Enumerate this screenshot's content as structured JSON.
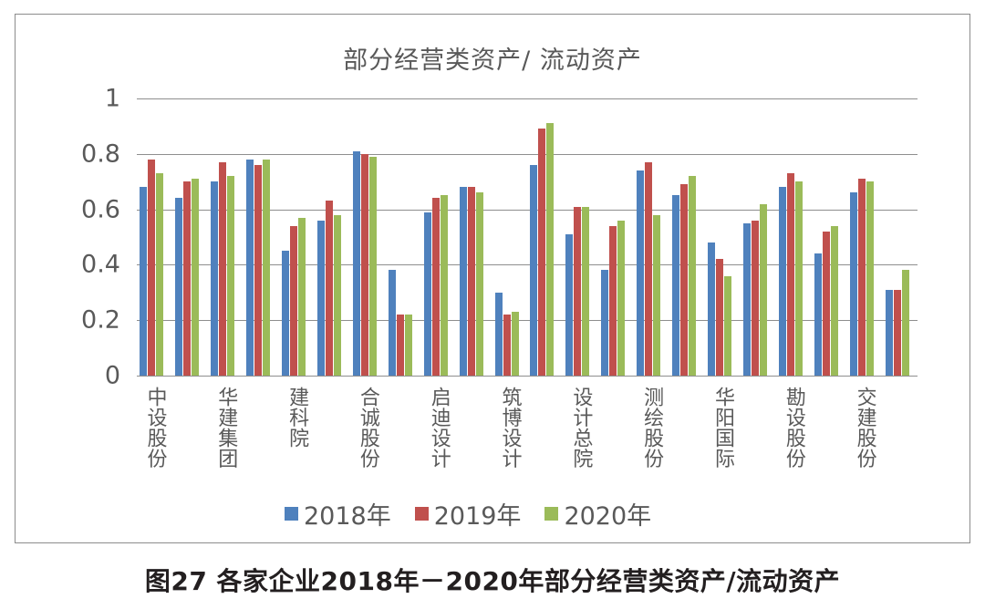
{
  "caption": "图27   各家企业2018年－2020年部分经营类资产/流动资产",
  "chart_data": {
    "type": "bar",
    "title": "部分经营类资产/ 流动资产",
    "xlabel": "",
    "ylabel": "",
    "ylim": [
      0,
      1
    ],
    "yticks": [
      "0",
      "0.2",
      "0.4",
      "0.6",
      "0.8",
      "1"
    ],
    "grid": true,
    "legend_position": "bottom",
    "category_labels_shown": [
      "中设股份",
      "华建集团",
      "建科院",
      "合诚股份",
      "启迪设计",
      "筑博设计",
      "设计总院",
      "测绘股份",
      "华阳国际",
      "勘设股份",
      "交建股份"
    ],
    "categories": [
      "中设股份",
      "",
      "华建集团",
      "",
      "建科院",
      "",
      "合诚股份",
      "",
      "启迪设计",
      "",
      "筑博设计",
      "",
      "设计总院",
      "",
      "测绘股份",
      "",
      "华阳国际",
      "",
      "勘设股份",
      "",
      "交建股份",
      ""
    ],
    "series": [
      {
        "name": "2018年",
        "color": "#4f81bd",
        "values": [
          0.68,
          0.64,
          0.7,
          0.78,
          0.45,
          0.56,
          0.81,
          0.38,
          0.59,
          0.68,
          0.3,
          0.76,
          0.51,
          0.38,
          0.74,
          0.65,
          0.48,
          0.55,
          0.68,
          0.44,
          0.66,
          0.31
        ]
      },
      {
        "name": "2019年",
        "color": "#c0504d",
        "values": [
          0.78,
          0.7,
          0.77,
          0.76,
          0.54,
          0.63,
          0.8,
          0.22,
          0.64,
          0.68,
          0.22,
          0.89,
          0.61,
          0.54,
          0.77,
          0.69,
          0.42,
          0.56,
          0.73,
          0.52,
          0.71,
          0.31
        ]
      },
      {
        "name": "2020年",
        "color": "#9bbb59",
        "values": [
          0.73,
          0.71,
          0.72,
          0.78,
          0.57,
          0.58,
          0.79,
          0.22,
          0.65,
          0.66,
          0.23,
          0.91,
          0.61,
          0.56,
          0.58,
          0.72,
          0.36,
          0.62,
          0.7,
          0.54,
          0.7,
          0.38
        ]
      }
    ]
  }
}
